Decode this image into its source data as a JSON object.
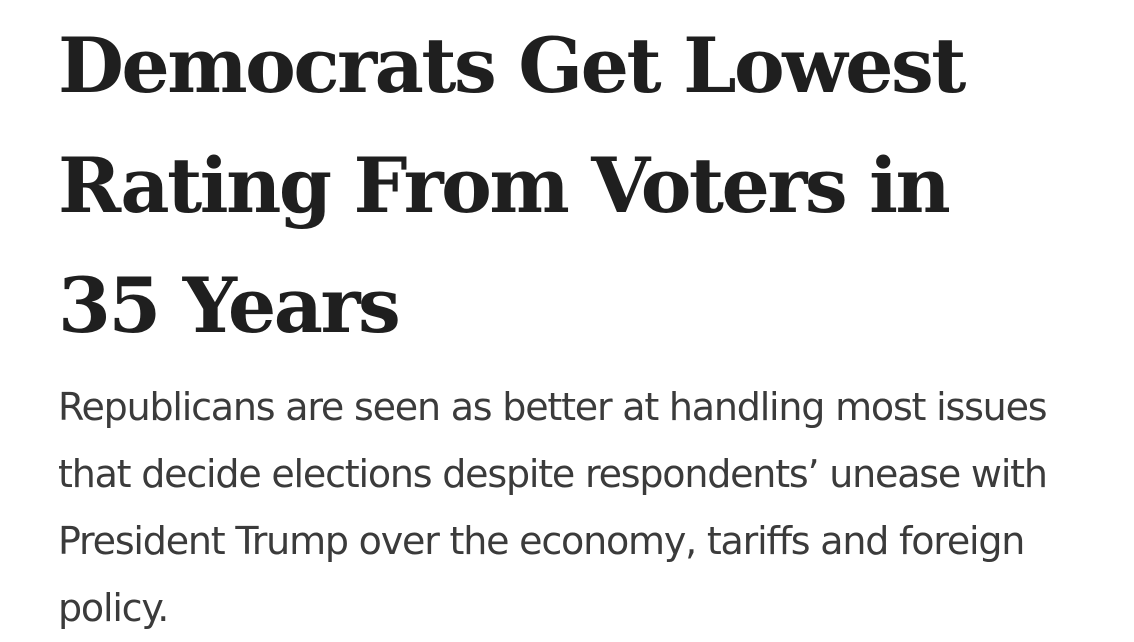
{
  "article": {
    "headline": "Democrats Get Lowest Rating From Voters in 35 Years",
    "dek": "Republicans are seen as better at handling most issues that decide elections despite respondents’ unease with President Trump over the economy, tariffs and foreign policy."
  }
}
